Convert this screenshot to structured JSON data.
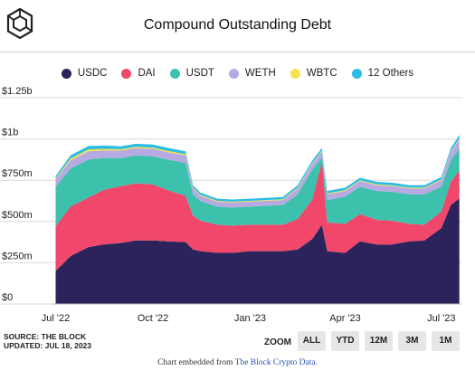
{
  "title": "Compound Outstanding Debt",
  "legend": [
    {
      "name": "USDC",
      "color": "#2b2359"
    },
    {
      "name": "DAI",
      "color": "#f0476a"
    },
    {
      "name": "USDT",
      "color": "#3cc1ad"
    },
    {
      "name": "WETH",
      "color": "#b7a9e2"
    },
    {
      "name": "WBTC",
      "color": "#f6e04b"
    },
    {
      "name": "12 Others",
      "color": "#2bbde6"
    }
  ],
  "source_line1": "SOURCE: THE BLOCK",
  "source_line2": "UPDATED: JUL 18, 2023",
  "zoom": {
    "label": "ZOOM",
    "buttons": [
      "ALL",
      "YTD",
      "12M",
      "3M",
      "1M"
    ]
  },
  "credit": {
    "prefix": "Chart embedded from ",
    "link": "The Block Crypto Data."
  },
  "chart_data": {
    "type": "area",
    "stacked": true,
    "title": "Compound Outstanding Debt",
    "y_ticks": [
      "$0",
      "$250m",
      "$500m",
      "$750m",
      "$1b",
      "$1.25b"
    ],
    "x_ticks": [
      "Jul '22",
      "Oct '22",
      "Jan '23",
      "Apr '23",
      "Jul '23"
    ],
    "ylim": [
      0,
      1250
    ],
    "y_unit": "millions USD",
    "x": [
      "2022-07-01",
      "2022-07-15",
      "2022-08-01",
      "2022-08-15",
      "2022-09-01",
      "2022-09-15",
      "2022-10-01",
      "2022-10-15",
      "2022-11-01",
      "2022-11-08",
      "2022-11-15",
      "2022-12-01",
      "2022-12-15",
      "2023-01-01",
      "2023-01-15",
      "2023-02-01",
      "2023-02-15",
      "2023-03-01",
      "2023-03-10",
      "2023-03-15",
      "2023-04-01",
      "2023-04-15",
      "2023-05-01",
      "2023-05-15",
      "2023-06-01",
      "2023-06-15",
      "2023-07-01",
      "2023-07-10",
      "2023-07-18"
    ],
    "series": [
      {
        "name": "USDC",
        "values": [
          200,
          290,
          345,
          360,
          370,
          385,
          385,
          380,
          375,
          330,
          320,
          310,
          310,
          320,
          320,
          320,
          330,
          395,
          480,
          320,
          310,
          380,
          360,
          360,
          380,
          385,
          460,
          600,
          640
        ]
      },
      {
        "name": "DAI",
        "values": [
          270,
          300,
          300,
          330,
          345,
          345,
          340,
          310,
          280,
          205,
          185,
          170,
          165,
          160,
          160,
          160,
          185,
          240,
          385,
          175,
          175,
          165,
          150,
          145,
          105,
          95,
          100,
          140,
          170
        ]
      },
      {
        "name": "USDT",
        "values": [
          240,
          230,
          230,
          195,
          170,
          170,
          170,
          185,
          200,
          130,
          120,
          110,
          110,
          110,
          115,
          120,
          150,
          180,
          25,
          135,
          165,
          165,
          175,
          175,
          180,
          185,
          150,
          130,
          130
        ]
      },
      {
        "name": "WETH",
        "values": [
          45,
          50,
          50,
          45,
          45,
          45,
          45,
          45,
          45,
          35,
          30,
          30,
          30,
          30,
          30,
          30,
          35,
          35,
          35,
          35,
          35,
          35,
          35,
          35,
          35,
          35,
          40,
          50,
          60
        ]
      },
      {
        "name": "WBTC",
        "values": [
          5,
          12,
          12,
          10,
          8,
          8,
          8,
          8,
          8,
          6,
          6,
          5,
          5,
          5,
          5,
          5,
          5,
          5,
          5,
          5,
          5,
          5,
          5,
          5,
          5,
          5,
          5,
          5,
          5
        ]
      },
      {
        "name": "12 Others",
        "values": [
          15,
          18,
          20,
          20,
          18,
          18,
          18,
          18,
          17,
          14,
          14,
          13,
          13,
          13,
          13,
          13,
          15,
          15,
          15,
          15,
          15,
          15,
          15,
          15,
          15,
          15,
          15,
          20,
          20
        ]
      }
    ]
  }
}
